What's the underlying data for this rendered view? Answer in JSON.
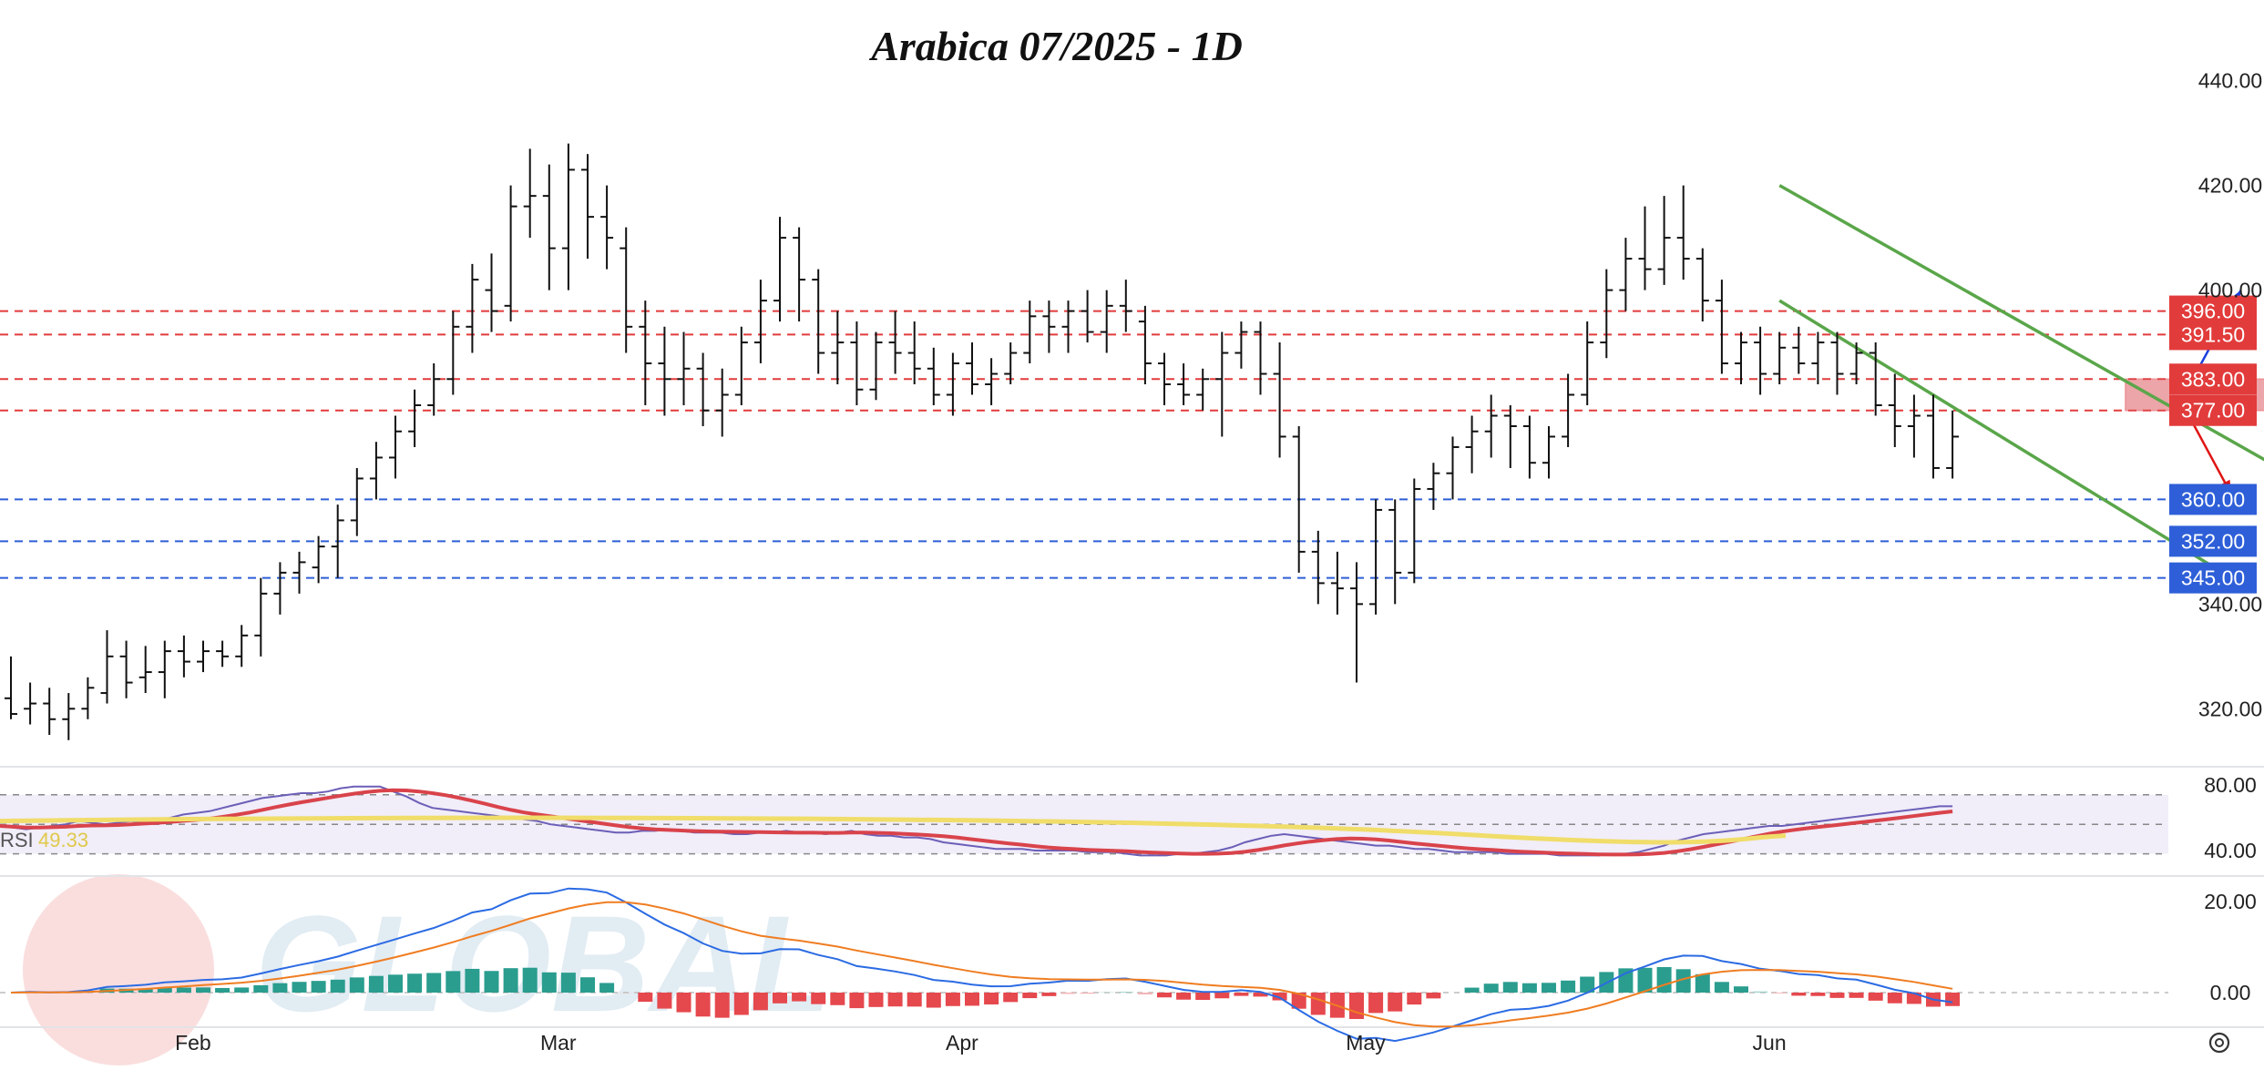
{
  "chart_data": {
    "type": "ohlc",
    "title": "Arabica 07/2025 - 1D",
    "price_axis": {
      "ylim": [
        311,
        445
      ],
      "ticks": [
        440,
        420,
        400,
        340,
        320
      ],
      "tick_labels": [
        "440.00",
        "420.00",
        "400.00",
        "340.00",
        "320.00"
      ]
    },
    "time_axis": {
      "labels": [
        "Feb",
        "Mar",
        "Apr",
        "May",
        "Jun"
      ],
      "label_index": [
        9,
        28,
        49,
        70,
        91
      ]
    },
    "levels": {
      "resistance": [
        {
          "value": 396,
          "label": "396.00",
          "color": "#e23b3b"
        },
        {
          "value": 391.5,
          "label": "391.50",
          "color": "#e23b3b"
        },
        {
          "value": 383,
          "label": "383.00",
          "color": "#e23b3b"
        },
        {
          "value": 377,
          "label": "377.00",
          "color": "#e23b3b"
        }
      ],
      "support": [
        {
          "value": 360,
          "label": "360.00",
          "color": "#2e5fd8"
        },
        {
          "value": 352,
          "label": "352.00",
          "color": "#2e5fd8"
        },
        {
          "value": 345,
          "label": "345.00",
          "color": "#2e5fd8"
        }
      ]
    },
    "bars": [
      {
        "o": 322,
        "h": 330,
        "l": 318,
        "c": 319
      },
      {
        "o": 320,
        "h": 325,
        "l": 317,
        "c": 321
      },
      {
        "o": 321,
        "h": 324,
        "l": 315,
        "c": 318
      },
      {
        "o": 318,
        "h": 323,
        "l": 314,
        "c": 320
      },
      {
        "o": 320,
        "h": 326,
        "l": 318,
        "c": 324
      },
      {
        "o": 323,
        "h": 335,
        "l": 321,
        "c": 330
      },
      {
        "o": 330,
        "h": 333,
        "l": 322,
        "c": 325
      },
      {
        "o": 326,
        "h": 332,
        "l": 323,
        "c": 327
      },
      {
        "o": 327,
        "h": 333,
        "l": 322,
        "c": 331
      },
      {
        "o": 331,
        "h": 334,
        "l": 326,
        "c": 329
      },
      {
        "o": 329,
        "h": 333,
        "l": 327,
        "c": 331
      },
      {
        "o": 331,
        "h": 333,
        "l": 328,
        "c": 330
      },
      {
        "o": 330,
        "h": 336,
        "l": 328,
        "c": 334
      },
      {
        "o": 334,
        "h": 345,
        "l": 330,
        "c": 342
      },
      {
        "o": 342,
        "h": 348,
        "l": 338,
        "c": 346
      },
      {
        "o": 346,
        "h": 350,
        "l": 342,
        "c": 348
      },
      {
        "o": 347,
        "h": 353,
        "l": 344,
        "c": 351
      },
      {
        "o": 351,
        "h": 359,
        "l": 345,
        "c": 356
      },
      {
        "o": 356,
        "h": 366,
        "l": 353,
        "c": 364
      },
      {
        "o": 364,
        "h": 371,
        "l": 360,
        "c": 368
      },
      {
        "o": 368,
        "h": 376,
        "l": 364,
        "c": 373
      },
      {
        "o": 373,
        "h": 381,
        "l": 370,
        "c": 378
      },
      {
        "o": 378,
        "h": 386,
        "l": 376,
        "c": 383
      },
      {
        "o": 383,
        "h": 396,
        "l": 380,
        "c": 393
      },
      {
        "o": 393,
        "h": 405,
        "l": 388,
        "c": 402
      },
      {
        "o": 400,
        "h": 407,
        "l": 392,
        "c": 396
      },
      {
        "o": 397,
        "h": 420,
        "l": 394,
        "c": 416
      },
      {
        "o": 416,
        "h": 427,
        "l": 410,
        "c": 418
      },
      {
        "o": 418,
        "h": 424,
        "l": 400,
        "c": 408
      },
      {
        "o": 408,
        "h": 428,
        "l": 400,
        "c": 423
      },
      {
        "o": 423,
        "h": 426,
        "l": 406,
        "c": 414
      },
      {
        "o": 414,
        "h": 420,
        "l": 404,
        "c": 410
      },
      {
        "o": 408,
        "h": 412,
        "l": 388,
        "c": 393
      },
      {
        "o": 393,
        "h": 398,
        "l": 378,
        "c": 386
      },
      {
        "o": 386,
        "h": 393,
        "l": 376,
        "c": 383
      },
      {
        "o": 383,
        "h": 392,
        "l": 378,
        "c": 385
      },
      {
        "o": 385,
        "h": 388,
        "l": 374,
        "c": 377
      },
      {
        "o": 377,
        "h": 385,
        "l": 372,
        "c": 380
      },
      {
        "o": 380,
        "h": 393,
        "l": 378,
        "c": 390
      },
      {
        "o": 390,
        "h": 402,
        "l": 386,
        "c": 398
      },
      {
        "o": 398,
        "h": 414,
        "l": 394,
        "c": 410
      },
      {
        "o": 410,
        "h": 412,
        "l": 394,
        "c": 402
      },
      {
        "o": 402,
        "h": 404,
        "l": 384,
        "c": 388
      },
      {
        "o": 388,
        "h": 396,
        "l": 382,
        "c": 390
      },
      {
        "o": 390,
        "h": 394,
        "l": 378,
        "c": 381
      },
      {
        "o": 381,
        "h": 392,
        "l": 379,
        "c": 390
      },
      {
        "o": 390,
        "h": 396,
        "l": 384,
        "c": 388
      },
      {
        "o": 388,
        "h": 394,
        "l": 382,
        "c": 385
      },
      {
        "o": 385,
        "h": 389,
        "l": 378,
        "c": 380
      },
      {
        "o": 380,
        "h": 388,
        "l": 376,
        "c": 386
      },
      {
        "o": 386,
        "h": 390,
        "l": 380,
        "c": 382
      },
      {
        "o": 382,
        "h": 387,
        "l": 378,
        "c": 384
      },
      {
        "o": 384,
        "h": 390,
        "l": 382,
        "c": 388
      },
      {
        "o": 388,
        "h": 398,
        "l": 386,
        "c": 395
      },
      {
        "o": 395,
        "h": 398,
        "l": 388,
        "c": 393
      },
      {
        "o": 393,
        "h": 398,
        "l": 388,
        "c": 396
      },
      {
        "o": 396,
        "h": 400,
        "l": 390,
        "c": 392
      },
      {
        "o": 392,
        "h": 400,
        "l": 388,
        "c": 397
      },
      {
        "o": 397,
        "h": 402,
        "l": 392,
        "c": 396
      },
      {
        "o": 394,
        "h": 397,
        "l": 382,
        "c": 386
      },
      {
        "o": 386,
        "h": 388,
        "l": 378,
        "c": 382
      },
      {
        "o": 382,
        "h": 386,
        "l": 378,
        "c": 380
      },
      {
        "o": 380,
        "h": 385,
        "l": 377,
        "c": 383
      },
      {
        "o": 383,
        "h": 392,
        "l": 372,
        "c": 388
      },
      {
        "o": 388,
        "h": 394,
        "l": 385,
        "c": 392
      },
      {
        "o": 392,
        "h": 394,
        "l": 380,
        "c": 384
      },
      {
        "o": 384,
        "h": 390,
        "l": 368,
        "c": 372
      },
      {
        "o": 372,
        "h": 374,
        "l": 346,
        "c": 350
      },
      {
        "o": 350,
        "h": 354,
        "l": 340,
        "c": 344
      },
      {
        "o": 344,
        "h": 350,
        "l": 338,
        "c": 343
      },
      {
        "o": 343,
        "h": 348,
        "l": 325,
        "c": 340
      },
      {
        "o": 340,
        "h": 360,
        "l": 338,
        "c": 358
      },
      {
        "o": 358,
        "h": 360,
        "l": 340,
        "c": 346
      },
      {
        "o": 346,
        "h": 364,
        "l": 344,
        "c": 362
      },
      {
        "o": 362,
        "h": 367,
        "l": 358,
        "c": 365
      },
      {
        "o": 365,
        "h": 372,
        "l": 360,
        "c": 370
      },
      {
        "o": 370,
        "h": 376,
        "l": 365,
        "c": 373
      },
      {
        "o": 373,
        "h": 380,
        "l": 368,
        "c": 376
      },
      {
        "o": 376,
        "h": 378,
        "l": 366,
        "c": 374
      },
      {
        "o": 374,
        "h": 376,
        "l": 364,
        "c": 367
      },
      {
        "o": 367,
        "h": 374,
        "l": 364,
        "c": 372
      },
      {
        "o": 372,
        "h": 384,
        "l": 370,
        "c": 380
      },
      {
        "o": 380,
        "h": 394,
        "l": 378,
        "c": 390
      },
      {
        "o": 390,
        "h": 404,
        "l": 387,
        "c": 400
      },
      {
        "o": 400,
        "h": 410,
        "l": 396,
        "c": 406
      },
      {
        "o": 406,
        "h": 416,
        "l": 400,
        "c": 404
      },
      {
        "o": 404,
        "h": 418,
        "l": 401,
        "c": 410
      },
      {
        "o": 410,
        "h": 420,
        "l": 402,
        "c": 406
      },
      {
        "o": 406,
        "h": 408,
        "l": 394,
        "c": 398
      },
      {
        "o": 398,
        "h": 402,
        "l": 384,
        "c": 386
      },
      {
        "o": 386,
        "h": 392,
        "l": 382,
        "c": 390
      },
      {
        "o": 390,
        "h": 393,
        "l": 380,
        "c": 384
      },
      {
        "o": 384,
        "h": 392,
        "l": 382,
        "c": 389
      },
      {
        "o": 389,
        "h": 393,
        "l": 384,
        "c": 386
      },
      {
        "o": 386,
        "h": 392,
        "l": 382,
        "c": 390
      },
      {
        "o": 390,
        "h": 392,
        "l": 380,
        "c": 384
      },
      {
        "o": 384,
        "h": 390,
        "l": 382,
        "c": 388
      },
      {
        "o": 388,
        "h": 390,
        "l": 376,
        "c": 378
      },
      {
        "o": 378,
        "h": 384,
        "l": 370,
        "c": 374
      },
      {
        "o": 374,
        "h": 380,
        "l": 368,
        "c": 376
      },
      {
        "o": 376,
        "h": 380,
        "l": 364,
        "c": 366
      },
      {
        "o": 366,
        "h": 377,
        "l": 364,
        "c": 372
      }
    ],
    "channel": {
      "upper": {
        "from": [
          92,
          420
        ],
        "to": [
          118,
          366
        ]
      },
      "lower": {
        "from": [
          92,
          398
        ],
        "to": [
          115.5,
          345
        ]
      }
    },
    "zone": {
      "from_index": 110,
      "to_index": 119,
      "low": 377,
      "high": 383,
      "color": "#e06a70"
    },
    "arrows": [
      {
        "from": [
          113.5,
          383
        ],
        "to": [
          116,
          400
        ],
        "color": "#1a3fe0"
      },
      {
        "from": [
          113,
          378
        ],
        "to": [
          115.5,
          361
        ],
        "color": "#e01414"
      }
    ],
    "rsi": {
      "label": "RSI",
      "value_label": "49.33",
      "ylim": [
        30,
        80
      ],
      "ticks": [
        80,
        40
      ],
      "tick_labels": [
        "80.00",
        "40.00"
      ],
      "band": [
        38,
        74
      ],
      "values": [
        55,
        54,
        53,
        54,
        55,
        56,
        58,
        57,
        56,
        57,
        58,
        57,
        58,
        60,
        62,
        63,
        64,
        66,
        68,
        70,
        72,
        73,
        74,
        75,
        75,
        76,
        78,
        79,
        79,
        79,
        76,
        73,
        69,
        66,
        65,
        64,
        63,
        62,
        61,
        60,
        59,
        58,
        56,
        55,
        54,
        53,
        52,
        51,
        51,
        52,
        52,
        53,
        52,
        51,
        51,
        51,
        50,
        50,
        51,
        51,
        52,
        51,
        51,
        50,
        51,
        52,
        50,
        49,
        49,
        48,
        48,
        47,
        45,
        44,
        43,
        42,
        41,
        41,
        41,
        40,
        40,
        40,
        40,
        39,
        39,
        39,
        38,
        37,
        37,
        37,
        38,
        38,
        39,
        40,
        42,
        45,
        47,
        49,
        50,
        49,
        48,
        47,
        46,
        45,
        44,
        43,
        43,
        42,
        41,
        41,
        40,
        39,
        39,
        39,
        39,
        38,
        38,
        38,
        38,
        37,
        37,
        37,
        37,
        38,
        38,
        39,
        41,
        43,
        46,
        48,
        50,
        51,
        52,
        53,
        54,
        55,
        55,
        56,
        57,
        58,
        59,
        60,
        61,
        62,
        63,
        64,
        65,
        66,
        67,
        67
      ],
      "note": ""
    },
    "macd": {
      "ylim": [
        -4,
        22
      ],
      "ticks": [
        20,
        0
      ],
      "tick_labels": [
        "20.00",
        "0.00"
      ]
    },
    "watermark": "GLOBAL"
  }
}
